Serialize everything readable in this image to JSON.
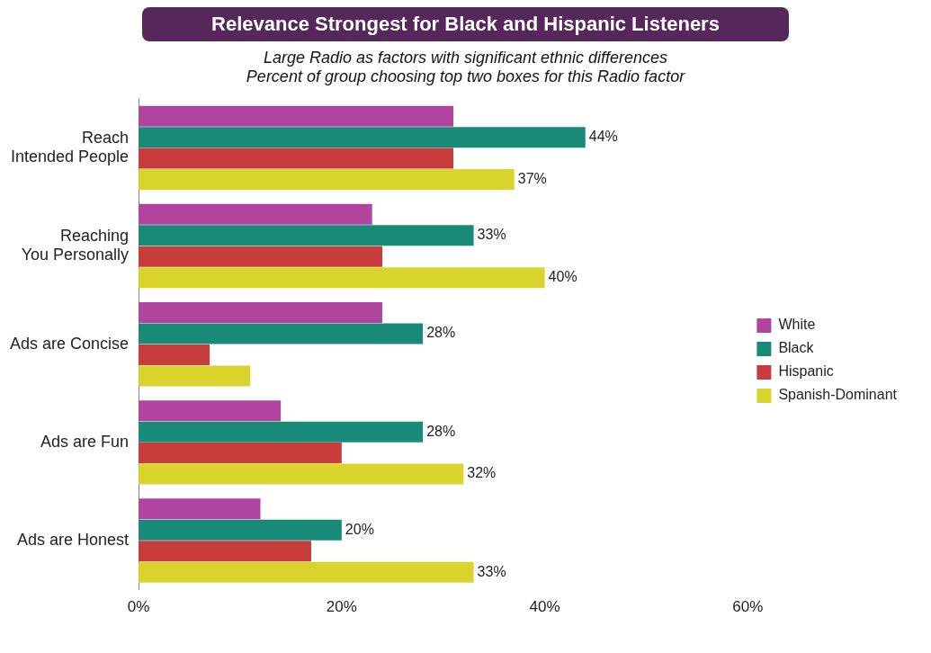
{
  "chart_data": {
    "type": "bar",
    "orientation": "horizontal",
    "title": "Relevance Strongest for Black and Hispanic Listeners",
    "subtitle": "Large Radio as factors with significant ethnic differences\nPercent of group choosing top two boxes for this Radio factor",
    "categories": [
      "Reach\nIntended People",
      "Reaching\nYou Personally",
      "Ads are Concise",
      "Ads are Fun",
      "Ads are Honest"
    ],
    "series": [
      {
        "name": "White",
        "color": "#b0449e",
        "values": [
          31,
          23,
          24,
          14,
          12
        ]
      },
      {
        "name": "Black",
        "color": "#1a8a78",
        "values": [
          44,
          33,
          28,
          28,
          20
        ],
        "value_labels": [
          "44%",
          "33%",
          "28%",
          "28%",
          "20%"
        ]
      },
      {
        "name": "Hispanic",
        "color": "#c83c3c",
        "values": [
          31,
          24,
          7,
          20,
          17
        ]
      },
      {
        "name": "Spanish-Dominant",
        "color": "#d8d42c",
        "values": [
          37,
          40,
          11,
          32,
          33
        ],
        "value_labels": [
          "37%",
          "40%",
          null,
          "32%",
          "33%"
        ]
      }
    ],
    "xlim": [
      0,
      60
    ],
    "xticks": [
      {
        "value": 0,
        "label": "0%"
      },
      {
        "value": 20,
        "label": "20%"
      },
      {
        "value": 40,
        "label": "40%"
      },
      {
        "value": 60,
        "label": "60%"
      }
    ],
    "grid": false,
    "legend": "right"
  }
}
